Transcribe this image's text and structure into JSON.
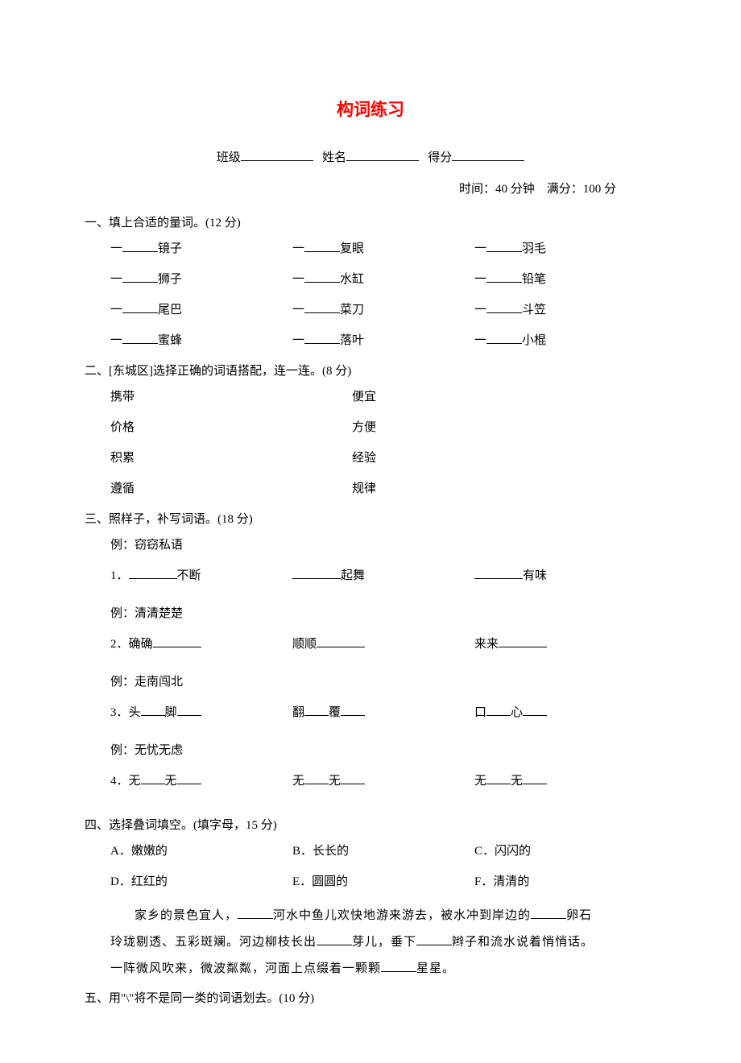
{
  "title": "构词练习",
  "header": {
    "class_label": "班级",
    "name_label": "姓名",
    "score_label": "得分"
  },
  "meta": {
    "time_label": "时间：",
    "time_value": "40 分钟",
    "full_marks_label": "满分：",
    "full_marks_value": "100 分"
  },
  "sections": {
    "s1": {
      "heading": "一、填上合适的量词。(12 分)",
      "rows": [
        [
          "镜子",
          "复眼",
          "羽毛"
        ],
        [
          "狮子",
          "水缸",
          "铅笔"
        ],
        [
          "尾巴",
          "菜刀",
          "斗笠"
        ],
        [
          "蜜蜂",
          "落叶",
          "小棍"
        ]
      ],
      "prefix": "一"
    },
    "s2": {
      "heading": "二、[东城区]选择正确的词语搭配，连一连。(8 分)",
      "pairs": [
        [
          "携带",
          "便宜"
        ],
        [
          "价格",
          "方便"
        ],
        [
          "积累",
          "经验"
        ],
        [
          "遵循",
          "规律"
        ]
      ]
    },
    "s3": {
      "heading": "三、照样子，补写词语。(18 分)",
      "example_label": "例：",
      "groups": [
        {
          "example": "窃窃私语",
          "num": "1．",
          "items": [
            {
              "suffix": "不断",
              "blank_pos": "before"
            },
            {
              "suffix": "起舞",
              "blank_pos": "before"
            },
            {
              "suffix": "有味",
              "blank_pos": "before"
            }
          ]
        },
        {
          "example": "清清楚楚",
          "num": "2．",
          "items": [
            {
              "prefix": "确确",
              "blank_pos": "after"
            },
            {
              "prefix": "顺顺",
              "blank_pos": "after"
            },
            {
              "prefix": "来来",
              "blank_pos": "after"
            }
          ]
        },
        {
          "example": "走南闯北",
          "num": "3．",
          "items": [
            {
              "parts": [
                "头",
                "脚"
              ]
            },
            {
              "parts": [
                "翻",
                "覆"
              ]
            },
            {
              "parts": [
                "口",
                "心"
              ]
            }
          ]
        },
        {
          "example": "无忧无虑",
          "num": "4．",
          "items": [
            {
              "parts": [
                "无",
                "无"
              ]
            },
            {
              "parts": [
                "无",
                "无"
              ]
            },
            {
              "parts": [
                "无",
                "无"
              ]
            }
          ]
        }
      ]
    },
    "s4": {
      "heading": "四、选择叠词填空。(填字母，15 分)",
      "options": [
        [
          "A．嫩嫩的",
          "B．长长的",
          "C．闪闪的"
        ],
        [
          "D．红红的",
          "E．圆圆的",
          "F．清清的"
        ]
      ],
      "passage_parts": [
        "家乡的景色宜人，",
        "河水中鱼儿欢快地游来游去，被水冲到岸边的",
        "卵石",
        "玲珑剔透、五彩斑斓。河边柳枝长出",
        "芽儿，垂下",
        "辫子和流水说着悄悄话。",
        "一阵微风吹来，微波粼粼，河面上点缀着一颗颗",
        "星星。"
      ]
    },
    "s5": {
      "heading": "五、用\"\\\"将不是同一类的词语划去。(10 分)"
    }
  }
}
